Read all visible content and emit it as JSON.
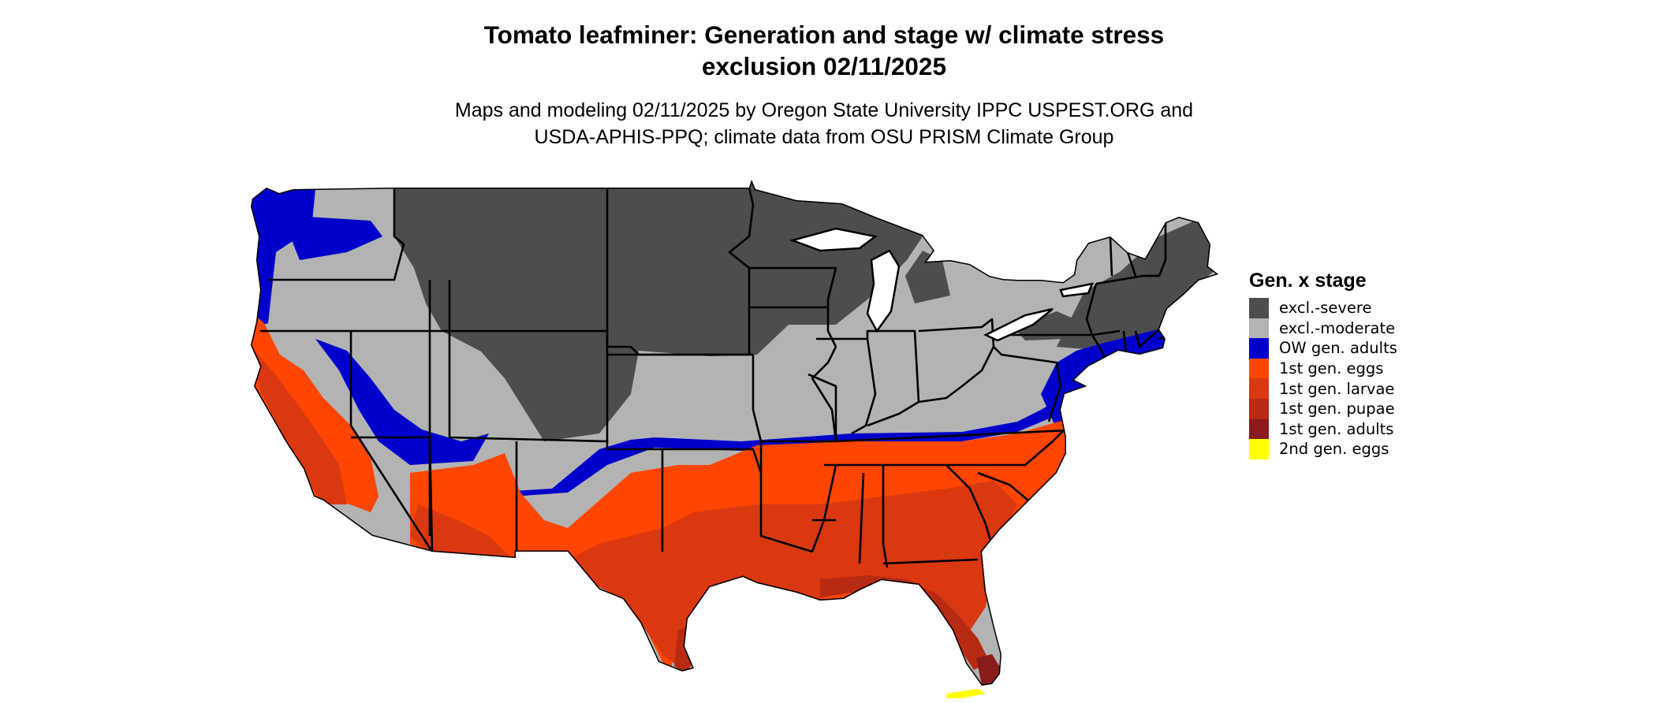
{
  "title": {
    "line1": "Tomato leafminer: Generation and stage w/ climate stress",
    "line2": "exclusion 02/11/2025"
  },
  "subtitle": {
    "line1": "Maps and modeling 02/11/2025 by Oregon State University IPPC USPEST.ORG and",
    "line2": "USDA-APHIS-PPQ; climate data from OSU PRISM Climate Group"
  },
  "legend": {
    "title": "Gen. x stage",
    "items": [
      {
        "label": "excl.-severe",
        "color": "#4d4d4d"
      },
      {
        "label": "excl.-moderate",
        "color": "#b3b3b3"
      },
      {
        "label": "OW gen. adults",
        "color": "#0000cc"
      },
      {
        "label": "1st gen. eggs",
        "color": "#ff4500"
      },
      {
        "label": "1st gen. larvae",
        "color": "#d93810"
      },
      {
        "label": "1st gen. pupae",
        "color": "#b82a12"
      },
      {
        "label": "1st gen. adults",
        "color": "#8b1a1a"
      },
      {
        "label": "2nd gen. eggs",
        "color": "#ffff00"
      }
    ]
  }
}
